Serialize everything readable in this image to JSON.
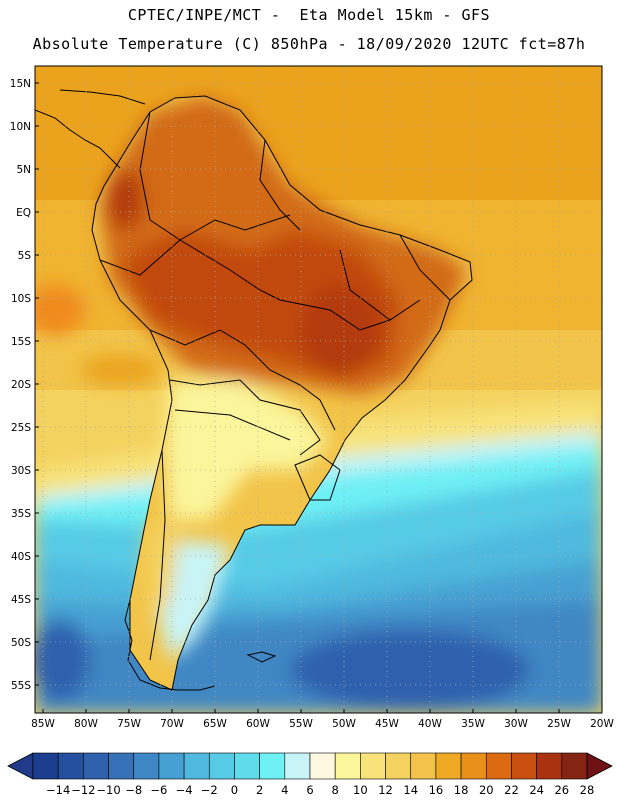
{
  "header": {
    "line1": "CPTEC/INPE/MCT -  Eta Model 15km - GFS",
    "line2": "Absolute Temperature (C) 850hPa - 18/09/2020 12UTC fct=87h"
  },
  "map": {
    "variable": "Absolute Temperature (C) at 850hPa",
    "lat_labels": [
      "15N",
      "10N",
      "5N",
      "EQ",
      "5S",
      "10S",
      "15S",
      "20S",
      "25S",
      "30S",
      "35S",
      "40S",
      "45S",
      "50S",
      "55S"
    ],
    "lon_labels": [
      "85W",
      "80W",
      "75W",
      "70W",
      "65W",
      "60W",
      "55W",
      "50W",
      "45W",
      "40W",
      "35W",
      "30W",
      "25W",
      "20W"
    ]
  },
  "colorbar": {
    "levels": [
      "-14",
      "-12",
      "-10",
      "-8",
      "-6",
      "-4",
      "-2",
      "0",
      "2",
      "4",
      "6",
      "8",
      "10",
      "12",
      "14",
      "16",
      "18",
      "20",
      "22",
      "24",
      "26",
      "28"
    ],
    "colors": [
      "#1b3f8e",
      "#244f9e",
      "#2f61ad",
      "#3772b8",
      "#3f87c4",
      "#46a0d2",
      "#4fb9df",
      "#57cbe6",
      "#5fdcec",
      "#6ef0f5",
      "#c8f4f8",
      "#fff8e0",
      "#fbf59b",
      "#f8e37a",
      "#f4d25f",
      "#f2c24a",
      "#eea925",
      "#e9901a",
      "#dc6a10",
      "#c95010",
      "#aa3210",
      "#842412"
    ],
    "under_color": "#223a8a",
    "over_color": "#6e1014"
  },
  "colors": {
    "land_tropics": "#d26a12",
    "land_hot": "#c2490e",
    "ocean_warm": "#eba31e",
    "ocean_mild": "#f2c449",
    "frame": "#000000",
    "grid": "#aaaaaa"
  }
}
